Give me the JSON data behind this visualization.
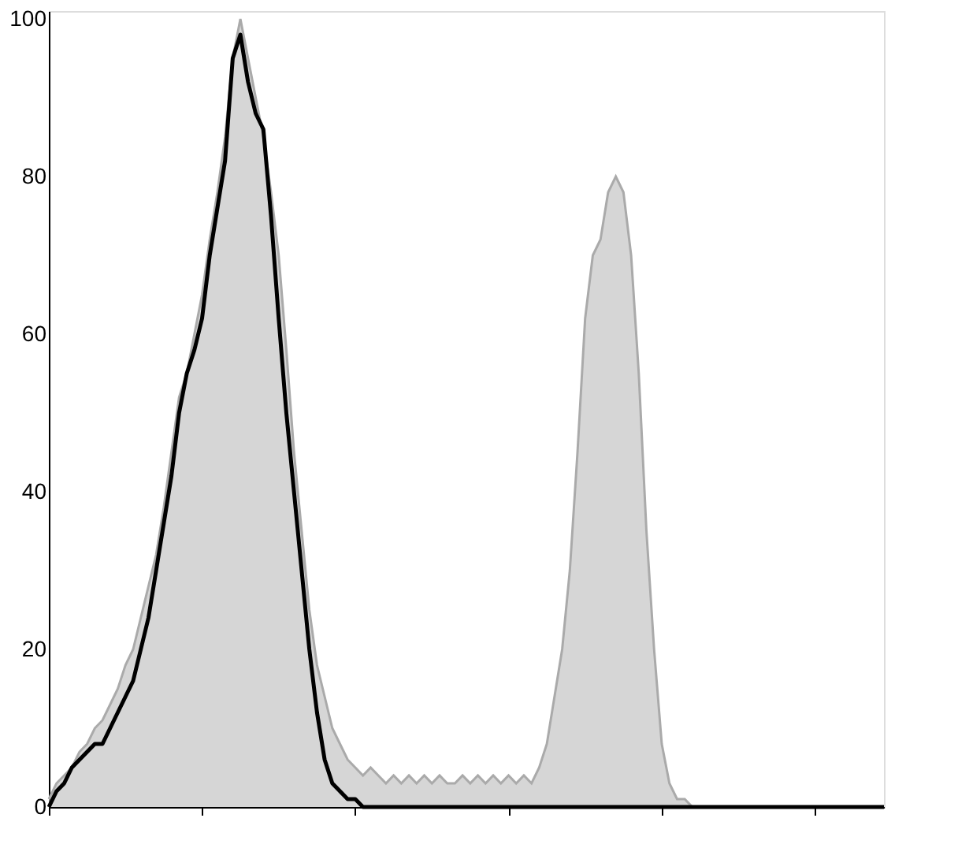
{
  "chart_data": {
    "type": "area",
    "categories": [
      null,
      null,
      null,
      null,
      null,
      null,
      null,
      null,
      null,
      null,
      null,
      null,
      null,
      null,
      null,
      null,
      null,
      null,
      null,
      null,
      null,
      null,
      null,
      null,
      null,
      null,
      null,
      null,
      null,
      null,
      null,
      null,
      null,
      null,
      null,
      null,
      null,
      null,
      null,
      null,
      null,
      null,
      null,
      null,
      null,
      null,
      null,
      null,
      null,
      null,
      null,
      null,
      null,
      null,
      null,
      null,
      null,
      null,
      null,
      null,
      null,
      null,
      null,
      null,
      null,
      null,
      null,
      null,
      null,
      null,
      null,
      null,
      null,
      null,
      null,
      null,
      null,
      null,
      null,
      null,
      null,
      null,
      null,
      null,
      null,
      null,
      null,
      null,
      null,
      null,
      null,
      null,
      null,
      null,
      null,
      null,
      null,
      null,
      null,
      null,
      null,
      null,
      null,
      null,
      null,
      null,
      null,
      null,
      null,
      null
    ],
    "series": [
      {
        "color": "#c4c4c4",
        "values": [
          1,
          3,
          4,
          5,
          7,
          8,
          10,
          11,
          13,
          15,
          18,
          20,
          24,
          28,
          32,
          38,
          45,
          52,
          55,
          60,
          65,
          72,
          78,
          85,
          95,
          100,
          95,
          90,
          85,
          78,
          70,
          58,
          45,
          35,
          25,
          18,
          14,
          10,
          8,
          6,
          5,
          4,
          5,
          4,
          3,
          4,
          3,
          4,
          3,
          4,
          3,
          4,
          3,
          3,
          4,
          3,
          4,
          3,
          4,
          3,
          4,
          3,
          4,
          3,
          5,
          8,
          14,
          20,
          30,
          45,
          62,
          70,
          72,
          78,
          80,
          78,
          70,
          55,
          35,
          20,
          8,
          3,
          1,
          1,
          0,
          0,
          0,
          0,
          0,
          0,
          0,
          0,
          0,
          0,
          0,
          0,
          0,
          0,
          0,
          0,
          0,
          0,
          0,
          0,
          0,
          0,
          0,
          0,
          0,
          0
        ]
      },
      {
        "type": "line",
        "color": "#000000",
        "values": [
          0,
          2,
          3,
          5,
          6,
          7,
          8,
          8,
          10,
          12,
          14,
          16,
          20,
          24,
          30,
          36,
          42,
          50,
          55,
          58,
          62,
          70,
          76,
          82,
          95,
          98,
          92,
          88,
          86,
          75,
          62,
          50,
          40,
          30,
          20,
          12,
          6,
          3,
          2,
          1,
          1,
          0,
          0,
          0,
          0,
          0,
          0,
          0,
          0,
          0,
          0,
          0,
          0,
          0,
          0,
          0,
          0,
          0,
          0,
          0,
          0,
          0,
          0,
          0,
          0,
          0,
          0,
          0,
          0,
          0,
          0,
          0,
          0,
          0,
          0,
          0,
          0,
          0,
          0,
          0,
          0,
          0,
          0,
          0,
          0,
          0,
          0,
          0,
          0,
          0,
          0,
          0,
          0,
          0,
          0,
          0,
          0,
          0,
          0,
          0,
          0,
          0,
          0,
          0,
          0,
          0,
          0,
          0,
          0,
          0
        ]
      }
    ],
    "ylim": [
      0,
      101
    ],
    "yticks": [
      0,
      20,
      40,
      60,
      80,
      100
    ],
    "tick_labels": "y",
    "grid": false
  }
}
